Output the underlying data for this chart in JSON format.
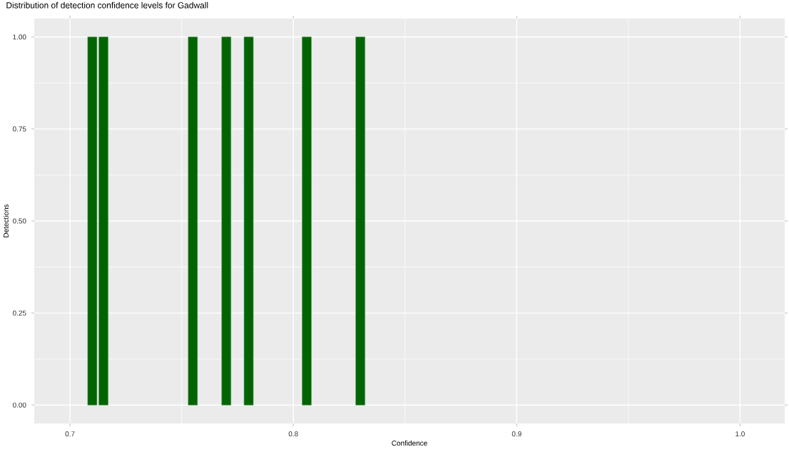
{
  "chart_data": {
    "type": "bar",
    "title": "Distribution of detection confidence levels for Gadwall",
    "xlabel": "Confidence",
    "ylabel": "Detections",
    "x": [
      0.71,
      0.715,
      0.755,
      0.77,
      0.78,
      0.806,
      0.83
    ],
    "values": [
      1,
      1,
      1,
      1,
      1,
      1,
      1
    ],
    "color": "#006400",
    "xlim": [
      0.684,
      1.02
    ],
    "xticks": [
      {
        "value": 0.7,
        "label": "0.7"
      },
      {
        "value": 0.8,
        "label": "0.8"
      },
      {
        "value": 0.9,
        "label": "0.9"
      },
      {
        "value": 1.0,
        "label": "1.0"
      }
    ],
    "ylim": [
      -0.05,
      1.05
    ],
    "yticks": [
      {
        "value": 0,
        "label": "0.00"
      },
      {
        "value": 0.25,
        "label": "0.25"
      },
      {
        "value": 0.5,
        "label": "0.50"
      },
      {
        "value": 0.75,
        "label": "0.75"
      },
      {
        "value": 1.0,
        "label": "1.00"
      }
    ],
    "grid": true
  }
}
